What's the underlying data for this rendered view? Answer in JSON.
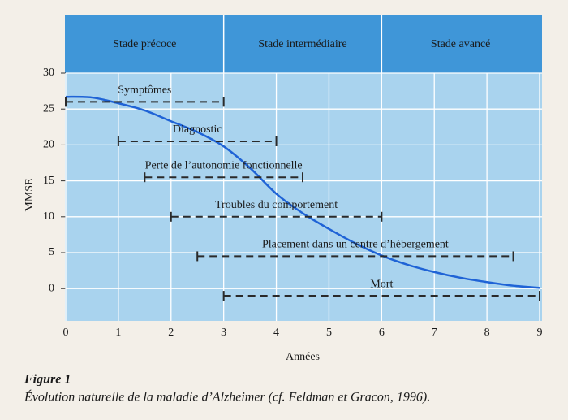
{
  "chart_data": {
    "type": "line",
    "y_label": "MMSE",
    "x_label": "Années",
    "figure_label": "Figure 1",
    "caption": "Évolution naturelle de la maladie d’Alzheimer (cf. Feldman et Gracon, 1996).",
    "stages": [
      {
        "label": "Stade précoce",
        "start": 0,
        "end": 3
      },
      {
        "label": "Stade intermédiaire",
        "start": 3,
        "end": 6
      },
      {
        "label": "Stade avancé",
        "start": 6,
        "end": 9
      }
    ],
    "x": [
      0,
      0.5,
      1,
      1.5,
      2,
      2.5,
      3,
      3.5,
      4,
      4.5,
      5,
      5.5,
      6,
      6.5,
      7,
      7.5,
      8,
      8.5,
      9
    ],
    "values": [
      26.7,
      26.6,
      25.8,
      24.8,
      23.3,
      21.8,
      19.8,
      16.8,
      13.2,
      10.5,
      8.3,
      6.3,
      4.6,
      3.3,
      2.3,
      1.5,
      0.9,
      0.4,
      0.1
    ],
    "color": "#1f63d6",
    "intervals": [
      {
        "label": "Symptômes",
        "start": 0,
        "end": 3,
        "y": 26
      },
      {
        "label": "Diagnostic",
        "start": 1,
        "end": 4,
        "y": 20.5
      },
      {
        "label": "Perte de l’autonomie fonctionnelle",
        "start": 1.5,
        "end": 4.5,
        "y": 15.5
      },
      {
        "label": "Troubles du comportement",
        "start": 2,
        "end": 6,
        "y": 10
      },
      {
        "label": "Placement dans un centre d’hébergement",
        "start": 2.5,
        "end": 8.5,
        "y": 4.5
      },
      {
        "label": "Mort",
        "start": 3,
        "end": 9,
        "y": -1
      }
    ],
    "xlim": [
      0,
      9
    ],
    "ylim": [
      -4.5,
      30
    ],
    "xticks": [
      0,
      1,
      2,
      3,
      4,
      5,
      6,
      7,
      8,
      9
    ],
    "yticks": [
      0,
      5,
      10,
      15,
      20,
      25,
      30
    ],
    "grid": true
  }
}
